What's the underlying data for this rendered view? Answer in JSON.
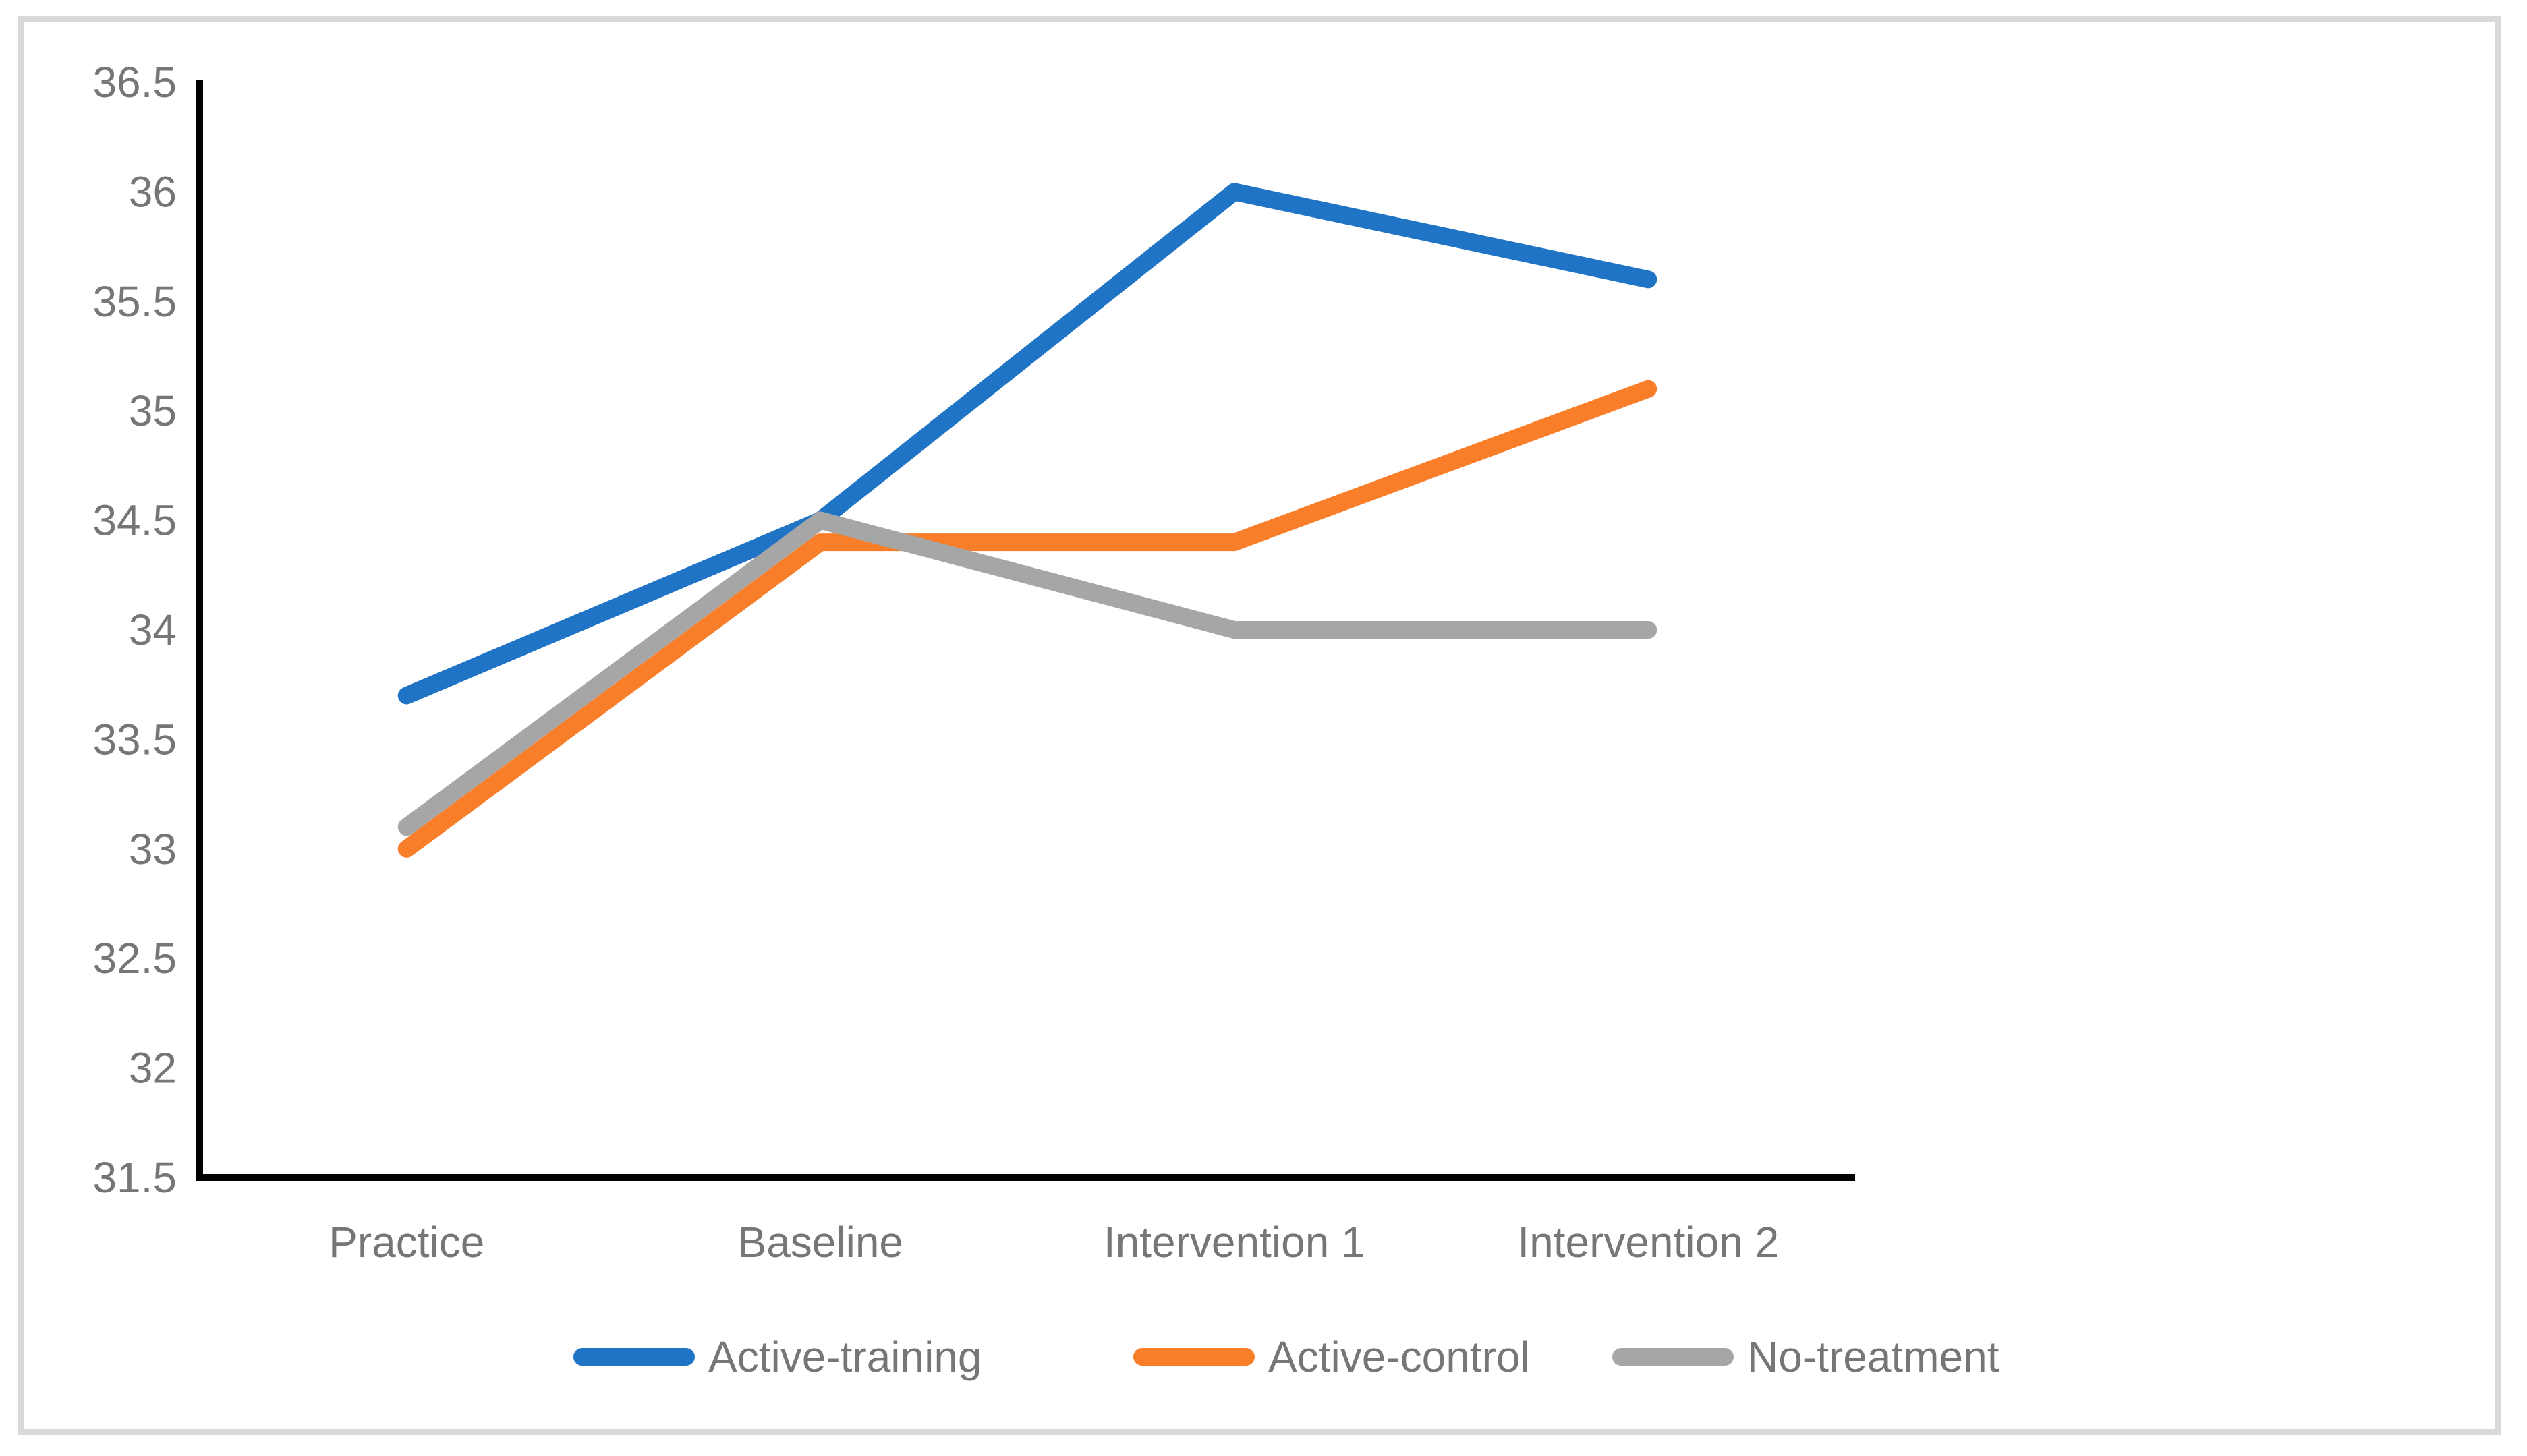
{
  "chart_data": {
    "type": "line",
    "title": "",
    "xlabel": "",
    "ylabel": "",
    "categories": [
      "Practice",
      "Baseline",
      "Intervention 1",
      "Intervention 2"
    ],
    "series": [
      {
        "name": "Active-training",
        "color": "#2074C5",
        "values": [
          33.7,
          34.5,
          36.0,
          35.6
        ]
      },
      {
        "name": "Active-control",
        "color": "#F87E2A",
        "values": [
          33.0,
          34.4,
          34.4,
          35.1
        ]
      },
      {
        "name": "No-treatment",
        "color": "#A6A6A6",
        "values": [
          33.1,
          34.5,
          34.0,
          34.0
        ]
      }
    ],
    "ylim": [
      31.5,
      36.5
    ],
    "ytick_step": 0.5,
    "yticks": [
      "36.5",
      "36",
      "35.5",
      "35",
      "34.5",
      "34",
      "33.5",
      "33",
      "32.5",
      "32",
      "31.5"
    ],
    "grid": false,
    "legend_position": "bottom",
    "colors": {
      "axis_line": "#000000",
      "text": "#767676",
      "frame": "#D9D9D9",
      "background": "#FFFFFF"
    }
  }
}
